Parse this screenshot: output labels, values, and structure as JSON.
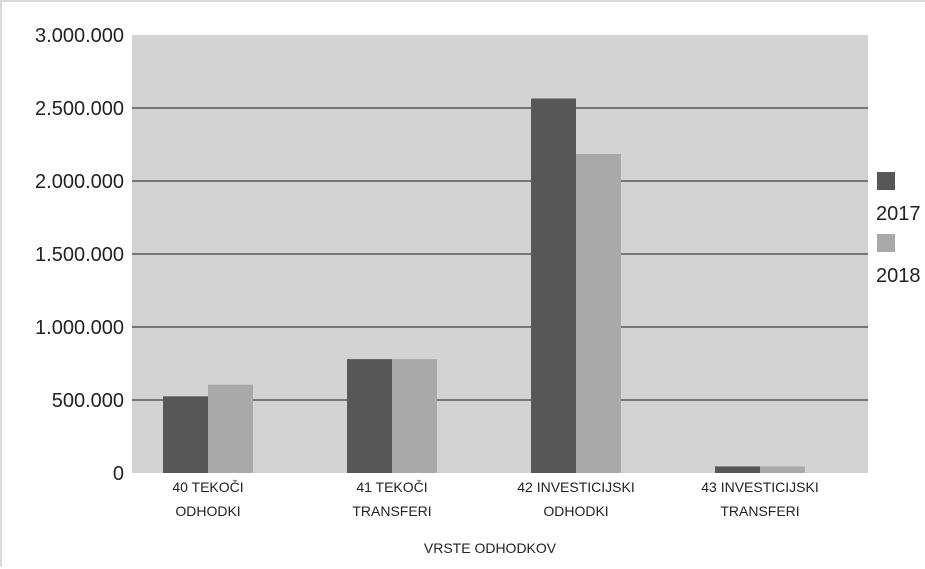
{
  "chart_data": {
    "type": "bar",
    "xlabel": "VRSTE ODHODKOV",
    "ylabel": "",
    "ylim": [
      0,
      3000000
    ],
    "yticks": [
      0,
      500000,
      1000000,
      1500000,
      2000000,
      2500000,
      3000000
    ],
    "ytick_labels": [
      "0",
      "500.000",
      "1.000.000",
      "1.500.000",
      "2.000.000",
      "2.500.000",
      "3.000.000"
    ],
    "categories": [
      [
        "40 TEKOČI",
        "ODHODKI"
      ],
      [
        "41 TEKOČI",
        "TRANSFERI"
      ],
      [
        "42 INVESTICIJSKI",
        "ODHODKI"
      ],
      [
        "43 INVESTICIJSKI",
        "TRANSFERI"
      ]
    ],
    "series": [
      {
        "name": "2017",
        "color": "#575757",
        "values": [
          525000,
          780000,
          2565000,
          45000
        ]
      },
      {
        "name": "2018",
        "color": "#a9a9aa",
        "values": [
          605000,
          780000,
          2185000,
          45000
        ]
      }
    ],
    "grid": true,
    "legend": "right",
    "plot_background": "#d3d3d4"
  }
}
